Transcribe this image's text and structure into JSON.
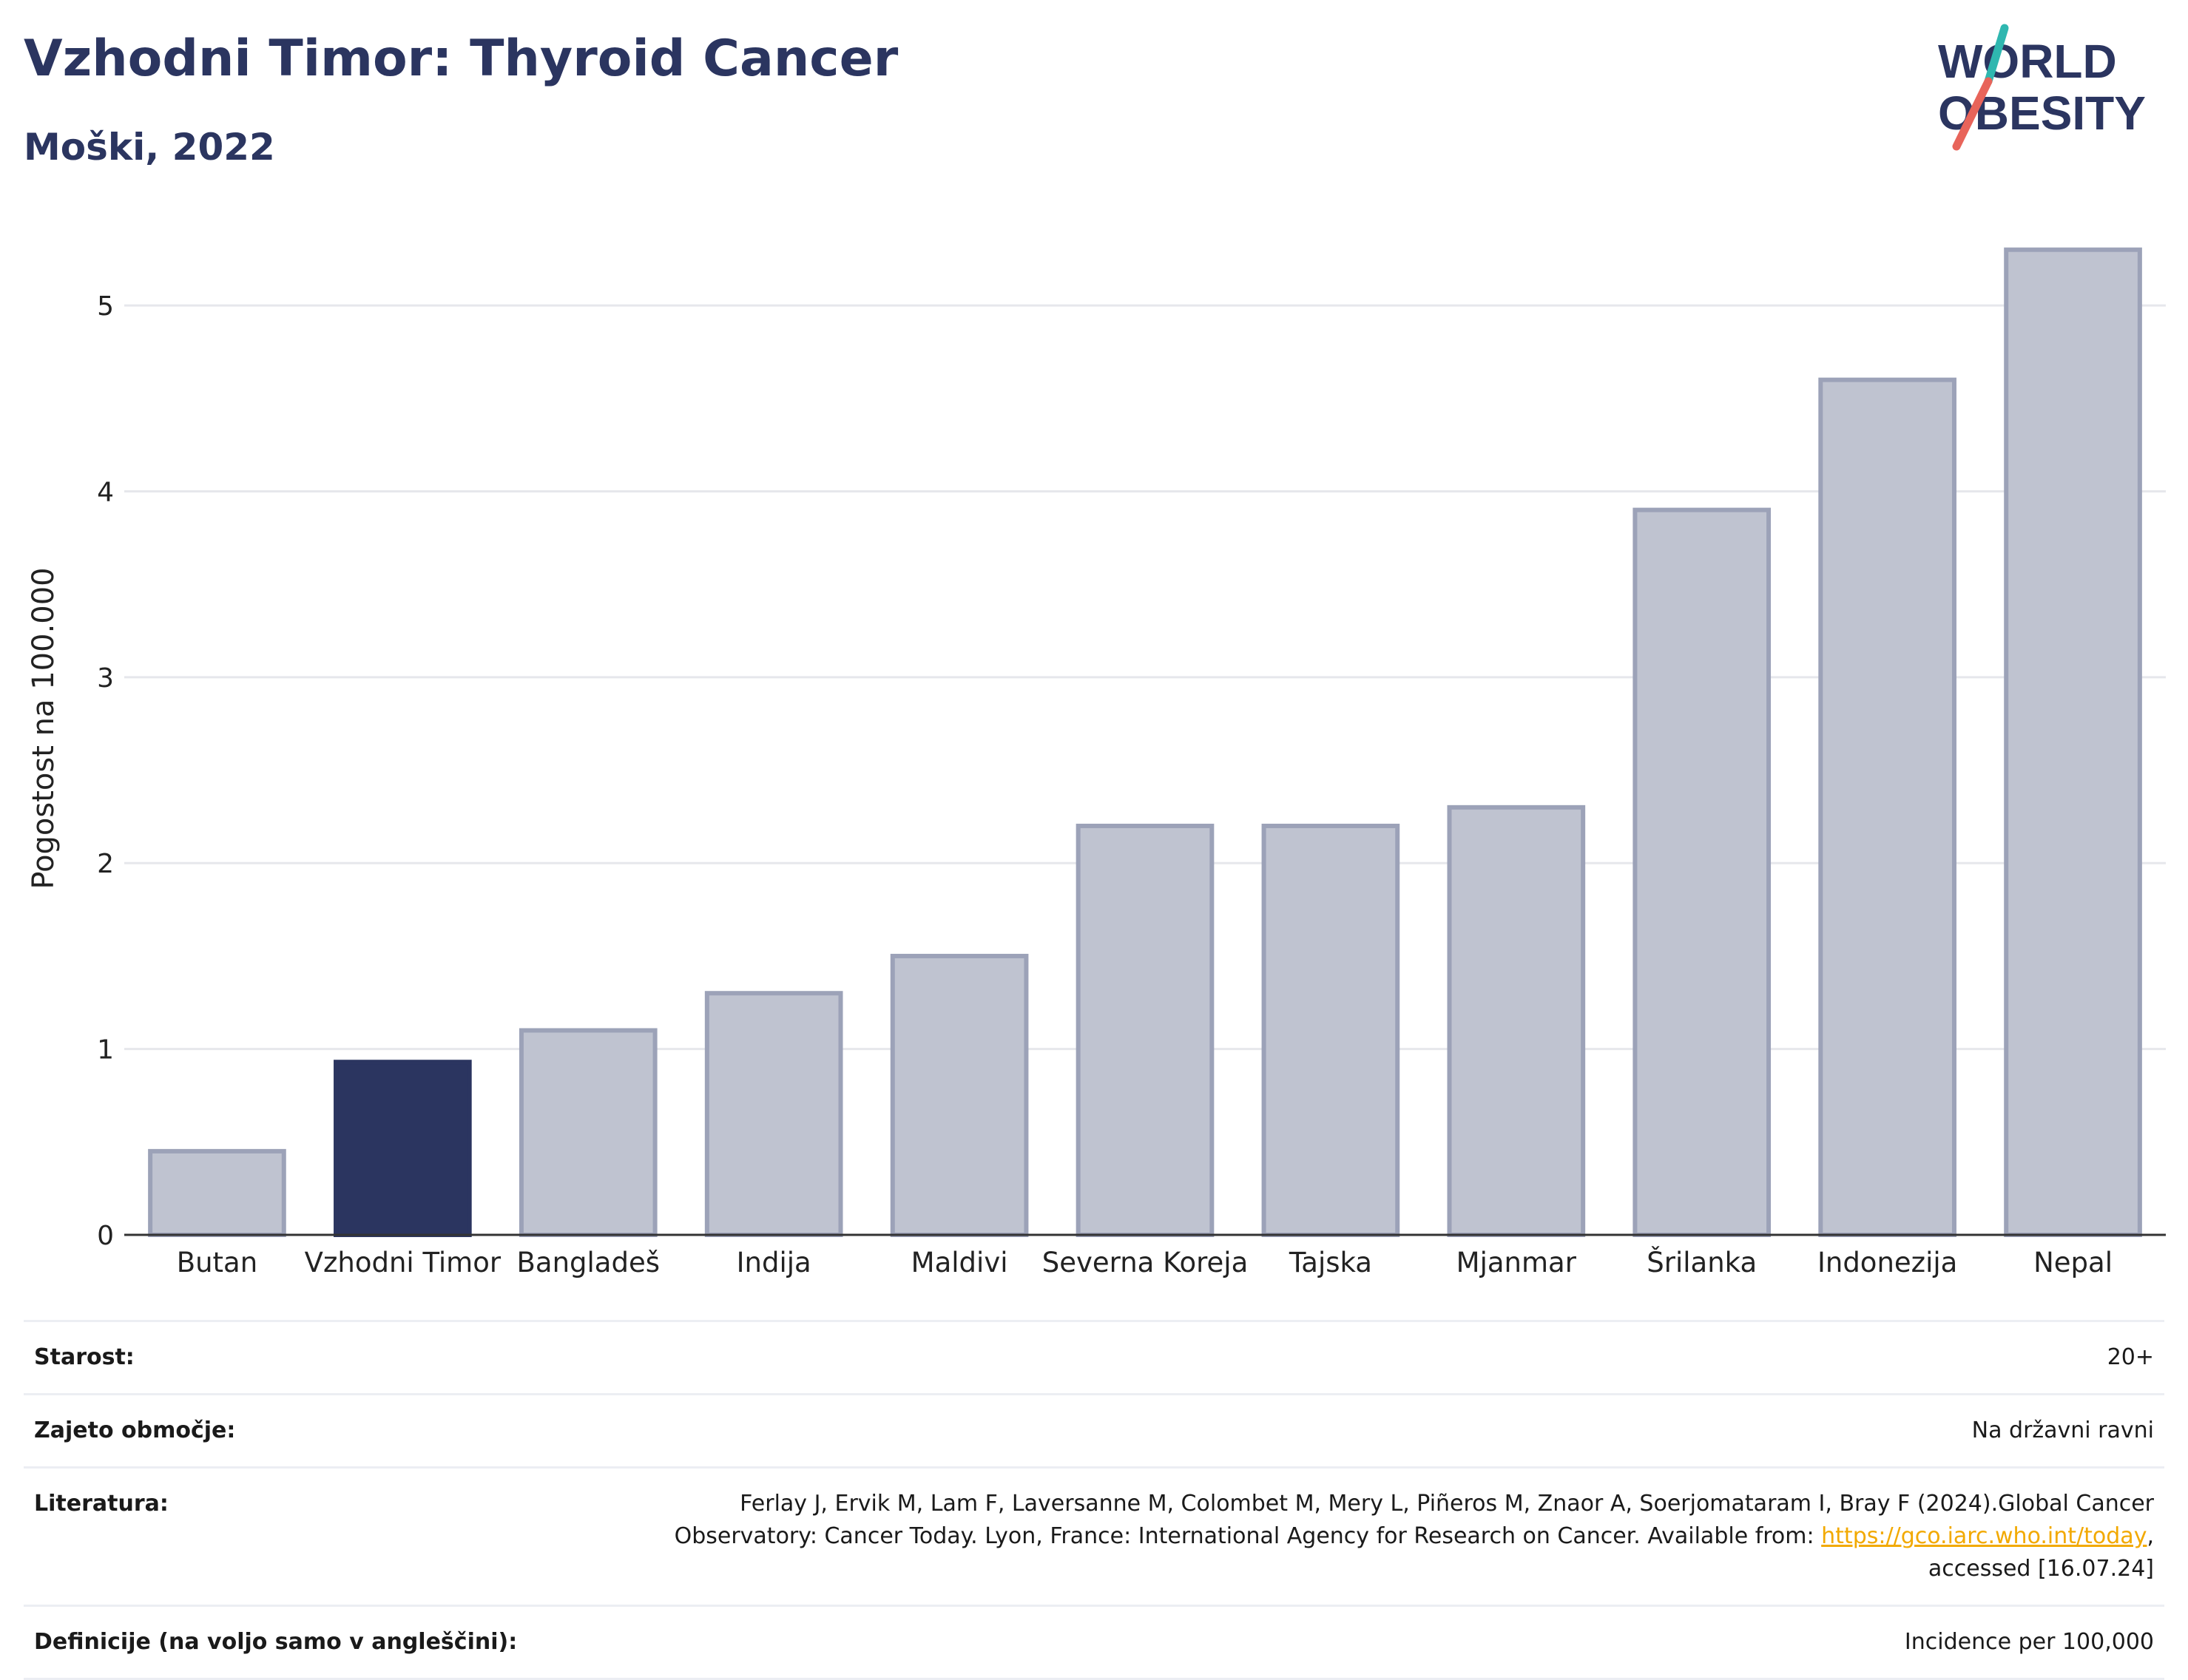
{
  "header": {
    "title": "Vzhodni Timor: Thyroid Cancer",
    "subtitle": "Moški, 2022"
  },
  "logo": {
    "line1": "WORLD",
    "line2": "OBESITY",
    "text_color": "#2b3560",
    "accent_teal": "#2fb7b0",
    "accent_red": "#e8645a"
  },
  "chart_data": {
    "type": "bar",
    "categories": [
      "Butan",
      "Vzhodni Timor",
      "Bangladeš",
      "Indija",
      "Maldivi",
      "Severna Koreja",
      "Tajska",
      "Mjanmar",
      "Šrilanka",
      "Indonezija",
      "Nepal"
    ],
    "values": [
      0.45,
      0.93,
      1.1,
      1.3,
      1.5,
      2.2,
      2.2,
      2.3,
      3.9,
      4.6,
      5.3
    ],
    "highlight": "Vzhodni Timor",
    "ylabel": "Pogostost na 100.000",
    "xlabel": "",
    "ylim": [
      0,
      5.45
    ],
    "yticks": [
      0,
      1,
      2,
      3,
      4,
      5
    ],
    "grid": true,
    "colors": {
      "bar_fill": "#bfc3d0",
      "bar_stroke": "#9ca2b8",
      "highlight": "#2b3560",
      "grid": "#e6e7ec",
      "axis": "#333333"
    }
  },
  "info": {
    "rows": [
      {
        "label": "Starost:",
        "value": "20+"
      },
      {
        "label": "Zajeto območje:",
        "value": "Na državni ravni"
      },
      {
        "label": "Literatura:",
        "value_line1": "Ferlay J, Ervik M, Lam F, Laversanne M, Colombet M, Mery L, Piñeros M, Znaor A, Soerjomataram I, Bray F (2024).Global Cancer",
        "value_line2_prefix": "Observatory: Cancer Today. Lyon, France: International Agency for Research on Cancer. Available from: ",
        "link_text": "https://gco.iarc.who.int/today",
        "value_line2_suffix": ",",
        "value_line3": "accessed [16.07.24]"
      },
      {
        "label": "Definicije (na voljo samo v angleščini):",
        "value": "Incidence per 100,000"
      }
    ]
  }
}
